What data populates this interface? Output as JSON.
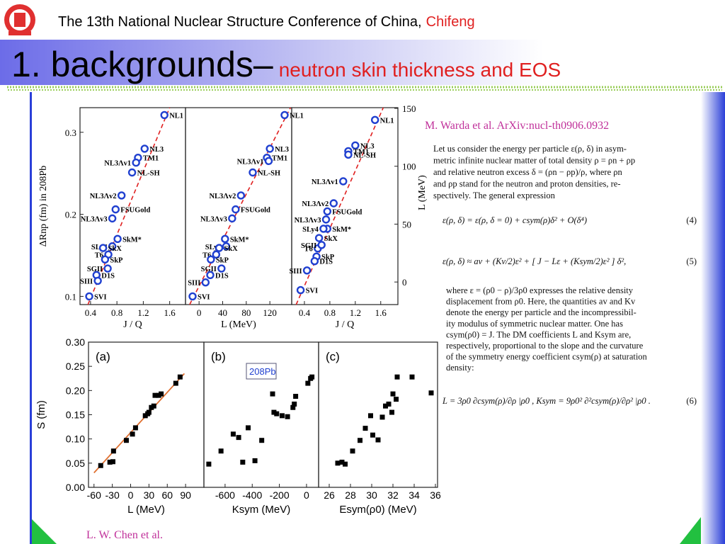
{
  "header": {
    "conference": "The 13th National Nuclear Structure Conference of China,",
    "city": "Chifeng"
  },
  "title": {
    "main": "1. backgrounds–",
    "subtitle": "neutron skin thickness and EOS"
  },
  "chart_data": [
    {
      "type": "scatter",
      "x_label": "J / Q",
      "y_label": "ΔRnp (fm) in 208Pb",
      "xlim": [
        0.24,
        1.84
      ],
      "xticks": [
        0.4,
        0.8,
        1.2,
        1.6
      ],
      "ylim": [
        0.09,
        0.33
      ],
      "yticks": [
        0.1,
        0.2,
        0.3
      ],
      "x": [
        1.52,
        1.22,
        1.12,
        1.09,
        1.03,
        0.87,
        0.78,
        0.73,
        0.81,
        0.73,
        0.59,
        0.67,
        0.62,
        0.66,
        0.49,
        0.51,
        0.38
      ],
      "point_labels": [
        "NL1",
        "NL3",
        "TM1",
        "NL3Λv1",
        "NL-SH",
        "NL3Λv2",
        "FSUGold",
        "NL3Λv3",
        "SkM*",
        "SLy4",
        "SkX",
        "T6",
        "SkP",
        "SGII",
        "D1S",
        "SIII",
        "SVI"
      ],
      "series": [
        {
          "color": "#2040d0",
          "marker": "open-circle",
          "values": [
            0.321,
            0.28,
            0.269,
            0.263,
            0.251,
            0.223,
            0.206,
            0.195,
            0.17,
            0.161,
            0.159,
            0.151,
            0.145,
            0.134,
            0.126,
            0.119,
            0.1
          ]
        }
      ],
      "fit": {
        "color": "#e02020",
        "x": [
          0.36,
          1.6
        ],
        "values": [
          0.09,
          0.33
        ]
      }
    },
    {
      "type": "scatter",
      "x_label": "L  (MeV)",
      "xlim": [
        -23,
        157
      ],
      "xticks": [
        0,
        40,
        80,
        120
      ],
      "ylim": [
        0.09,
        0.33
      ],
      "x": [
        145,
        120,
        115,
        118,
        91,
        71,
        62,
        56,
        44,
        46,
        34,
        29,
        20,
        38,
        19,
        11,
        -11
      ],
      "point_labels": [
        "NL1",
        "NL3",
        "TM1",
        "NL3Λv1",
        "NL-SH",
        "NL3Λv2",
        "FSUGold",
        "NL3Λv3",
        "SkM*",
        "SLy4",
        "SkX",
        "T6",
        "SkP",
        "SGII",
        "D1S",
        "SIII",
        "SVI"
      ],
      "series": [
        {
          "color": "#2040d0",
          "marker": "open-circle",
          "values": [
            0.321,
            0.28,
            0.269,
            0.265,
            0.251,
            0.223,
            0.206,
            0.195,
            0.17,
            0.161,
            0.159,
            0.151,
            0.145,
            0.134,
            0.126,
            0.117,
            0.1
          ]
        }
      ],
      "fit": {
        "color": "#e02020",
        "x": [
          -16,
          155
        ],
        "values": [
          0.09,
          0.33
        ]
      }
    },
    {
      "type": "scatter",
      "x_label": "J / Q",
      "y2_label": "L  (MeV)",
      "xlim": [
        0.2,
        1.87
      ],
      "xticks": [
        0.4,
        0.8,
        1.2,
        1.6
      ],
      "y2lim": [
        -19.5,
        150.6
      ],
      "y2ticks": [
        0,
        50,
        100,
        150
      ],
      "x": [
        1.51,
        1.2,
        1.09,
        1.01,
        1.09,
        0.86,
        0.76,
        0.74,
        0.76,
        0.7,
        0.63,
        0.61,
        0.59,
        0.67,
        0.56,
        0.44,
        0.34
      ],
      "point_labels": [
        "NL1",
        "NL3",
        "TM1",
        "NL3Λv1",
        "NL-SH",
        "NL3Λv2",
        "FSUGold",
        "NL3Λv3",
        "SkM*",
        "SLy4",
        "SkX",
        "T6",
        "SkP",
        "SGII",
        "D1S",
        "SIII",
        "SVI"
      ],
      "series": [
        {
          "color": "#2040d0",
          "marker": "open-circle",
          "axis": "y2",
          "values": [
            140,
            118,
            113,
            87,
            110,
            68,
            61,
            54,
            46,
            46,
            38,
            29,
            22,
            32,
            18,
            10,
            -7
          ]
        }
      ],
      "fit": {
        "color": "#e02020",
        "x": [
          0.27,
          1.64
        ],
        "values": [
          -19.5,
          150.6
        ]
      }
    },
    {
      "type": "scatter",
      "panel_label": "(a)",
      "x_label": "L (MeV)",
      "y_label": "S (fm)",
      "xlim": [
        -69,
        120
      ],
      "xticks": [
        -60,
        -30,
        0,
        30,
        60,
        90
      ],
      "ylim": [
        0,
        0.3
      ],
      "yticks": [
        {
          "value": 0,
          "label": "0.00"
        },
        {
          "value": 0.05,
          "label": "0.05"
        },
        {
          "value": 0.1,
          "label": "0.10"
        },
        {
          "value": 0.15,
          "label": "0.15"
        },
        {
          "value": 0.2,
          "label": "0.20"
        },
        {
          "value": 0.25,
          "label": "0.25"
        },
        {
          "value": 0.3,
          "label": "0.30"
        }
      ],
      "x": [
        -49,
        -34,
        -29,
        -28,
        -7,
        3,
        8,
        24,
        28,
        30,
        34,
        38,
        40,
        46,
        50,
        74,
        81
      ],
      "series": [
        {
          "color": "#000000",
          "marker": "square",
          "values": [
            0.045,
            0.052,
            0.053,
            0.075,
            0.097,
            0.11,
            0.123,
            0.148,
            0.152,
            0.155,
            0.165,
            0.168,
            0.19,
            0.19,
            0.193,
            0.215,
            0.228
          ]
        }
      ],
      "fit": {
        "color": "#e07030",
        "x": [
          -60,
          88
        ],
        "values": [
          0.03,
          0.235
        ]
      }
    },
    {
      "type": "scatter",
      "panel_label": "(b)",
      "x_label": "Ksym (MeV)",
      "inset_label": "208Pb",
      "xlim": [
        -756,
        89
      ],
      "xticks": [
        -600,
        -400,
        -200,
        0
      ],
      "ylim": [
        0,
        0.3
      ],
      "x": [
        -720,
        -630,
        -540,
        -500,
        -470,
        -430,
        -380,
        -330,
        -250,
        -240,
        -220,
        -180,
        -140,
        -100,
        -90,
        -80,
        10,
        30,
        40
      ],
      "series": [
        {
          "color": "#000000",
          "marker": "square",
          "values": [
            0.048,
            0.075,
            0.11,
            0.103,
            0.052,
            0.123,
            0.055,
            0.097,
            0.193,
            0.155,
            0.152,
            0.148,
            0.146,
            0.165,
            0.172,
            0.188,
            0.215,
            0.225,
            0.228
          ]
        }
      ]
    },
    {
      "type": "scatter",
      "panel_label": "(c)",
      "x_label": "Esym(ρ0) (MeV)",
      "xlim": [
        25,
        36.2
      ],
      "xticks": [
        26,
        28,
        30,
        32,
        34,
        36
      ],
      "ylim": [
        0,
        0.3
      ],
      "x": [
        26.8,
        27.2,
        27.5,
        28.2,
        28.9,
        29.4,
        29.9,
        30.1,
        30.6,
        31.0,
        31.3,
        31.6,
        31.9,
        32.0,
        32.3,
        32.4,
        33.8,
        35.6
      ],
      "series": [
        {
          "color": "#000000",
          "marker": "square",
          "values": [
            0.05,
            0.052,
            0.048,
            0.075,
            0.097,
            0.122,
            0.148,
            0.108,
            0.098,
            0.145,
            0.168,
            0.172,
            0.155,
            0.193,
            0.182,
            0.228,
            0.228,
            0.195
          ]
        }
      ]
    }
  ],
  "text_panel": {
    "reference": "M. Warda et al. ArXiv:nucl-th0906.0932",
    "paragraph_1": [
      "Let us consider the energy per particle ε(ρ, δ) in asym-",
      "metric infinite nuclear matter of total density ρ = ρn + ρp",
      "and relative neutron excess δ = (ρn − ρp)/ρ, where ρn",
      "and ρp stand for the neutron and proton densities, re-",
      "spectively.  The general expression"
    ],
    "equation_4": {
      "text": "ε(ρ, δ) = ε(ρ, δ = 0) + csym(ρ)δ² + O(δ⁴)",
      "number": "(4)"
    },
    "equation_5": {
      "text": "ε(ρ, δ) ≈ av + (Kv/2)ε² + [ J − Lε + (Ksym/2)ε² ] δ²,",
      "number": "(5)"
    },
    "paragraph_2": [
      "where ε = (ρ0 − ρ)/3ρ0 expresses the relative density",
      "displacement from ρ0.  Here, the quantities av and Kv",
      "denote the energy per particle and the incompressibil-",
      "ity modulus of symmetric nuclear matter.  One has",
      "csym(ρ0) = J.  The DM coefficients L and Ksym are,",
      "respectively, proportional to the slope and the curvature",
      "of the symmetry energy coefficient csym(ρ) at saturation",
      "density:"
    ],
    "equation_6": {
      "text": "L = 3ρ0 ∂csym(ρ)/∂ρ |ρ0 ,    Ksym = 9ρ0² ∂²csym(ρ)/∂ρ² |ρ0 .",
      "number": "(6)"
    }
  },
  "credit": "L. W. Chen et al."
}
